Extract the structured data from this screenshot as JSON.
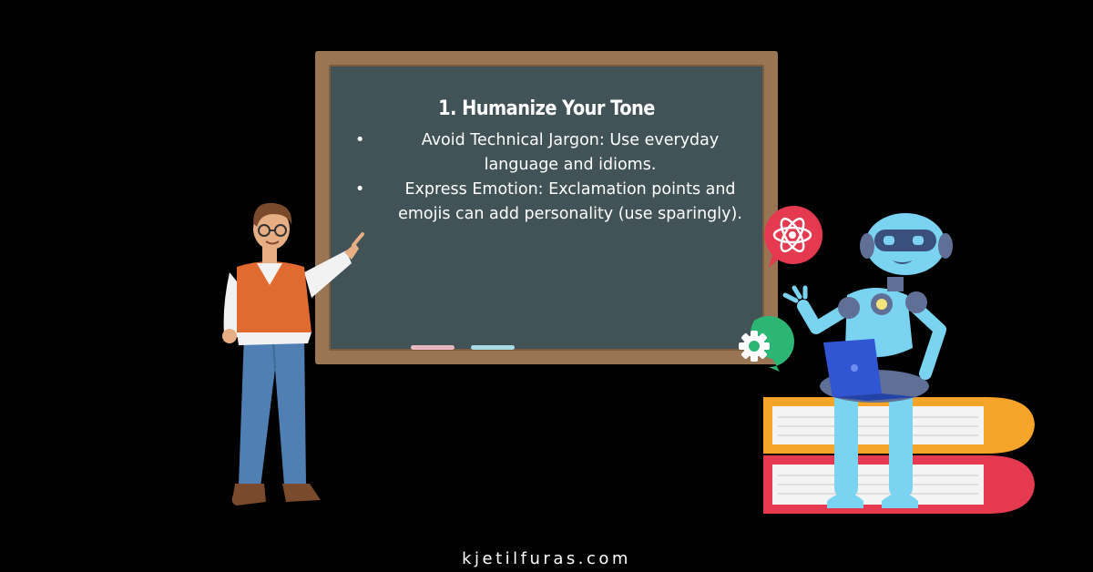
{
  "board": {
    "title": "1. Humanize Your Tone",
    "bullets": [
      {
        "marker": "•",
        "text": "Avoid Technical Jargon: Use everyday language and idioms."
      },
      {
        "marker": "•",
        "text": "Express Emotion: Exclamation points and emojis can add personality (use sparingly)."
      }
    ]
  },
  "footer": {
    "site": "kjetilfuras.com"
  },
  "colors": {
    "background": "#000000",
    "board": "#425357",
    "frame": "#9a7553",
    "robot": "#7ad3f0",
    "book_orange": "#f6a52a",
    "book_red": "#e53950",
    "atom_bubble": "#e53950",
    "gear_bubble": "#2bb673"
  },
  "icons": {
    "bubble_top": "atom-icon",
    "bubble_bottom": "gear-icon"
  }
}
